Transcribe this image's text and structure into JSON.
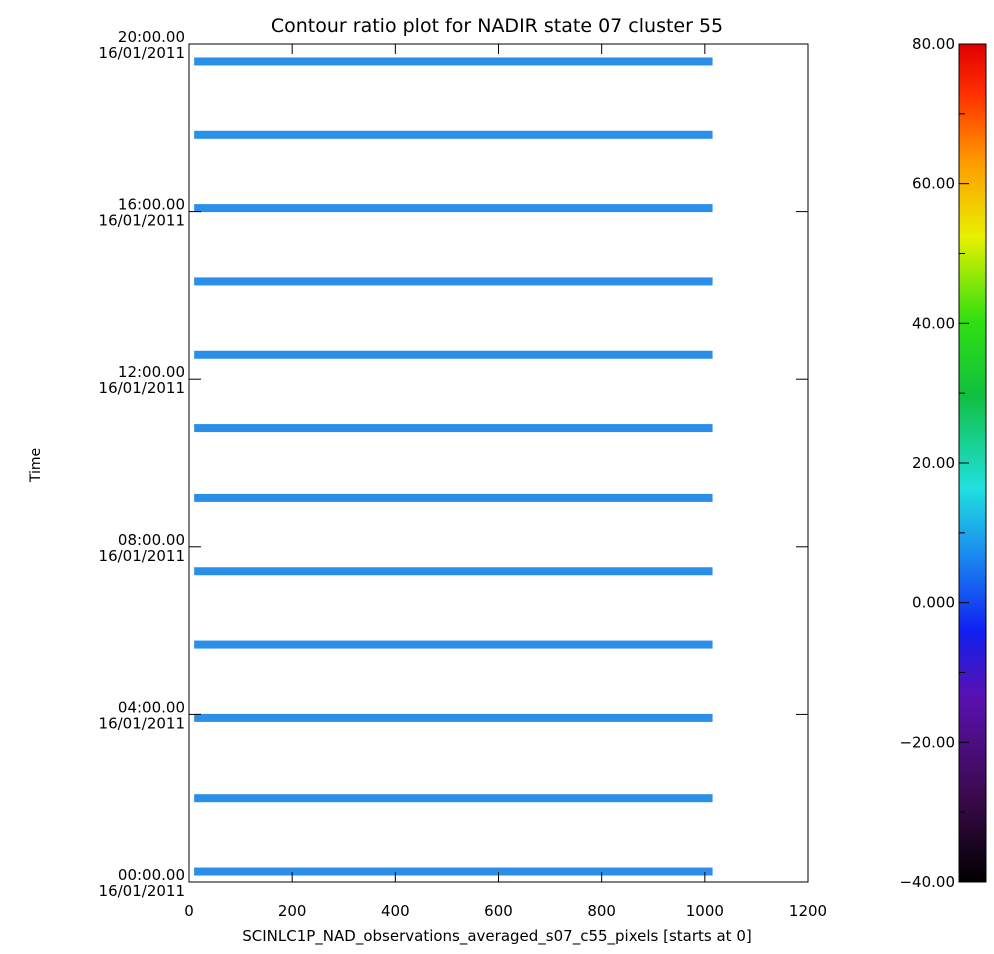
{
  "chart_data": {
    "type": "heatmap",
    "title": "Contour ratio plot for NADIR state 07 cluster 55",
    "xlabel": "SCINLC1P_NAD_observations_averaged_s07_c55_pixels [starts at 0]",
    "ylabel": "Time",
    "xlim": [
      0,
      1200
    ],
    "x_ticks": [
      "0",
      "200",
      "400",
      "600",
      "800",
      "1000",
      "1200"
    ],
    "ylim": [
      "16/01/2011 00:00",
      "16/01/2011 20:00"
    ],
    "y_ticks": [
      {
        "time": "00:00.00",
        "date": "16/01/2011"
      },
      {
        "time": "04:00.00",
        "date": "16/01/2011"
      },
      {
        "time": "08:00.00",
        "date": "16/01/2011"
      },
      {
        "time": "12:00.00",
        "date": "16/01/2011"
      },
      {
        "time": "16:00.00",
        "date": "16/01/2011"
      },
      {
        "time": "20:00.00",
        "date": "16/01/2011"
      }
    ],
    "observations": {
      "x_range": [
        10,
        1015
      ],
      "value_approx": 5,
      "color": "#2a8fe8",
      "times": [
        "00:15",
        "02:00",
        "03:55",
        "05:40",
        "07:25",
        "09:10",
        "10:50",
        "12:35",
        "14:20",
        "16:05",
        "17:50",
        "19:35"
      ]
    },
    "colorbar": {
      "range": [
        -40,
        80
      ],
      "tick_labels": [
        "80.00",
        "60.00",
        "40.00",
        "20.00",
        "0.000",
        "−20.00",
        "−40.00"
      ],
      "tick_values": [
        80,
        60,
        40,
        20,
        0,
        -20,
        -40
      ],
      "colormap": "rainbow"
    }
  }
}
